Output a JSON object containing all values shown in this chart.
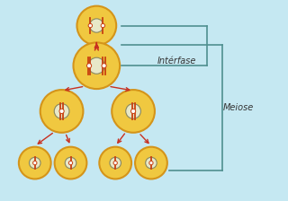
{
  "bg_color": "#c5e8f2",
  "cell_color": "#f0c840",
  "cell_edge_color": "#d4941a",
  "nucleus_color": "#e8e8c8",
  "nucleus_edge": "#888860",
  "chr_color": "#c84010",
  "arrow_color": "#c83020",
  "label_interfase": "Intérfase",
  "label_meiose": "Meiose",
  "bracket_color": "#509090",
  "figsize": [
    3.2,
    2.24
  ],
  "dpi": 100
}
